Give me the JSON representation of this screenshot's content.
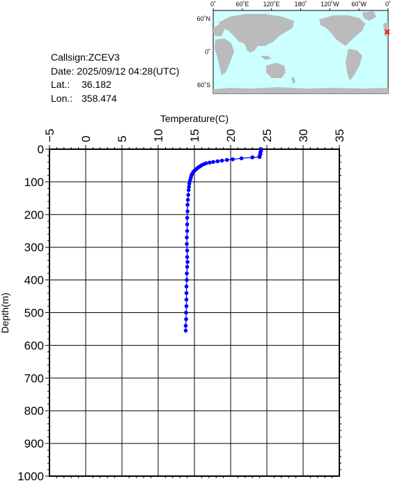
{
  "info": {
    "callsign": "Callsign:ZCEV3",
    "date": "Date:  2025/09/12 04:28(UTC)",
    "lat_label": "Lat.:",
    "lat_value": "36.182",
    "lon_label": "Lon.:",
    "lon_value": "358.474"
  },
  "map": {
    "top_labels": [
      "0˚",
      "60˚E",
      "120˚E",
      "180˚",
      "120˚W",
      "60˚W",
      "0˚"
    ],
    "left_labels": [
      "60˚N",
      "0˚",
      "60˚S"
    ],
    "marker_color": "#ff0000",
    "ocean_color": "#ccffff",
    "land_color": "#bbbbbb"
  },
  "chart_data": {
    "type": "line",
    "xlabel": "Temperature(C)",
    "ylabel": "Depth(m)",
    "xlim": [
      -5,
      35
    ],
    "ylim": [
      1000,
      0
    ],
    "x_ticks": [
      "-5",
      "0",
      "5",
      "10",
      "15",
      "20",
      "25",
      "30",
      "35"
    ],
    "y_ticks": [
      "0",
      "100",
      "200",
      "300",
      "400",
      "500",
      "600",
      "700",
      "800",
      "900",
      "1000"
    ],
    "grid": true,
    "series": [
      {
        "color": "#0000ff",
        "points": [
          [
            24.2,
            0
          ],
          [
            24.2,
            5
          ],
          [
            24.1,
            10
          ],
          [
            24.1,
            15
          ],
          [
            24.0,
            20
          ],
          [
            24.0,
            24
          ],
          [
            23.0,
            25
          ],
          [
            21.5,
            28
          ],
          [
            20.3,
            31
          ],
          [
            19.5,
            33
          ],
          [
            18.8,
            35
          ],
          [
            18.2,
            37
          ],
          [
            17.6,
            39
          ],
          [
            17.1,
            41
          ],
          [
            16.6,
            43
          ],
          [
            16.3,
            46
          ],
          [
            16.0,
            49
          ],
          [
            15.8,
            52
          ],
          [
            15.6,
            55
          ],
          [
            15.4,
            58
          ],
          [
            15.2,
            62
          ],
          [
            15.0,
            66
          ],
          [
            14.85,
            70
          ],
          [
            14.7,
            75
          ],
          [
            14.6,
            80
          ],
          [
            14.5,
            88
          ],
          [
            14.4,
            96
          ],
          [
            14.3,
            105
          ],
          [
            14.25,
            115
          ],
          [
            14.2,
            125
          ],
          [
            14.15,
            140
          ],
          [
            14.1,
            155
          ],
          [
            14.05,
            170
          ],
          [
            14.05,
            190
          ],
          [
            14.0,
            210
          ],
          [
            14.0,
            230
          ],
          [
            14.0,
            250
          ],
          [
            13.95,
            270
          ],
          [
            13.95,
            290
          ],
          [
            14.0,
            310
          ],
          [
            14.0,
            330
          ],
          [
            14.05,
            345
          ],
          [
            14.0,
            360
          ],
          [
            13.95,
            380
          ],
          [
            13.95,
            400
          ],
          [
            13.9,
            420
          ],
          [
            13.9,
            440
          ],
          [
            13.9,
            460
          ],
          [
            13.9,
            480
          ],
          [
            13.85,
            500
          ],
          [
            13.85,
            520
          ],
          [
            13.8,
            540
          ],
          [
            13.8,
            555
          ]
        ]
      }
    ]
  }
}
